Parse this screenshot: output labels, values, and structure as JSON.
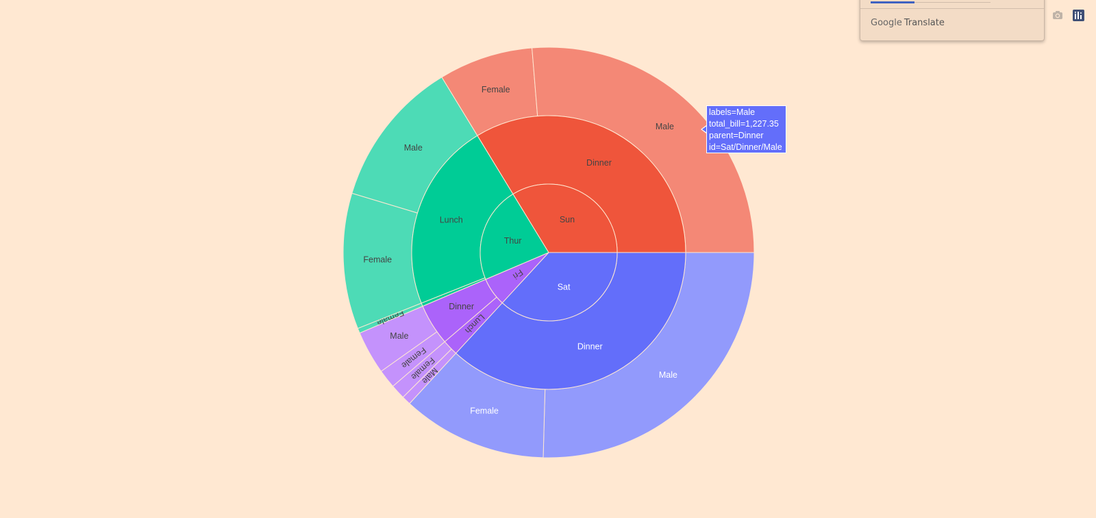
{
  "chart_data": {
    "type": "sunburst",
    "value_name": "total_bill",
    "colors": {
      "Sat": "#636efa",
      "Sun": "#ef553b",
      "Thur": "#00cc96",
      "Fri": "#ab63fa",
      "background": "#ffe8d2"
    },
    "days": [
      {
        "label": "Sat",
        "meals": [
          {
            "label": "Dinner",
            "sexes": [
              {
                "label": "Male",
                "value": 1227.35
              },
              {
                "label": "Female",
                "value": 551.05
              }
            ]
          }
        ]
      },
      {
        "label": "Fri",
        "meals": [
          {
            "label": "Lunch",
            "sexes": [
              {
                "label": "Male",
                "value": 34.16
              },
              {
                "label": "Female",
                "value": 55.76
              }
            ]
          },
          {
            "label": "Dinner",
            "sexes": [
              {
                "label": "Female",
                "value": 71.11
              },
              {
                "label": "Male",
                "value": 164.41
              }
            ]
          }
        ]
      },
      {
        "label": "Thur",
        "meals": [
          {
            "label": "Dinner",
            "sexes": [
              {
                "label": "Female",
                "value": 18.78
              }
            ]
          },
          {
            "label": "Lunch",
            "sexes": [
              {
                "label": "Female",
                "value": 516.11
              },
              {
                "label": "Male",
                "value": 561.44
              }
            ]
          }
        ]
      },
      {
        "label": "Sun",
        "meals": [
          {
            "label": "Dinner",
            "sexes": [
              {
                "label": "Female",
                "value": 357.7
              },
              {
                "label": "Male",
                "value": 1269.46
              }
            ]
          }
        ]
      }
    ]
  },
  "tooltip": {
    "line1": "labels=Male",
    "line2": "total_bill=1,227.35",
    "line3": "parent=Dinner",
    "line4": "id=Sat/Dinner/Male"
  },
  "translate_popup": {
    "brand_google": "Google",
    "brand_translate": "Translate"
  },
  "modebar": {
    "icons": [
      "camera-icon",
      "plotly-logo-icon"
    ]
  }
}
